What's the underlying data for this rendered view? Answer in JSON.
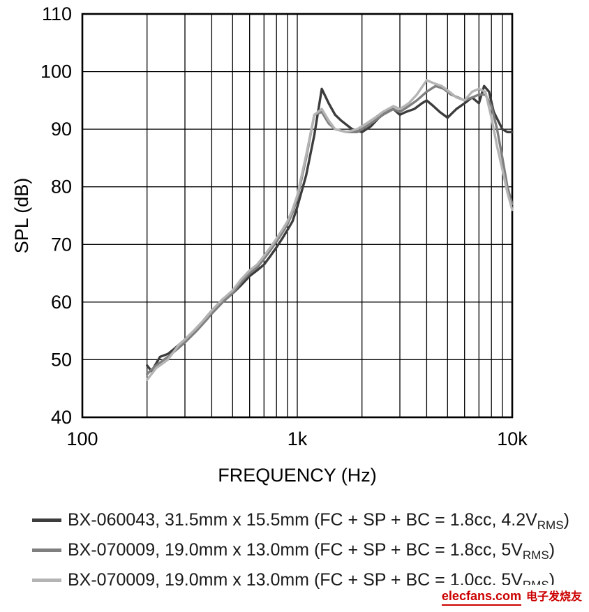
{
  "chart_data": {
    "type": "line",
    "title": "",
    "xlabel": "FREQUENCY (Hz)",
    "ylabel": "SPL (dB)",
    "x_scale": "log",
    "xlim": [
      100,
      10000
    ],
    "ylim": [
      40,
      110
    ],
    "x_ticks": [
      {
        "value": 100,
        "label": "100"
      },
      {
        "value": 1000,
        "label": "1k"
      },
      {
        "value": 10000,
        "label": "10k"
      }
    ],
    "y_ticks": [
      40,
      50,
      60,
      70,
      80,
      90,
      100,
      110
    ],
    "grid": "log minor verticals every decade step, horizontals every 10 dB, black",
    "legend_position": "below",
    "series": [
      {
        "name": "BX-060043, 31.5mm x 15.5mm (FC + SP + BC = 1.8cc, 4.2VRMS)",
        "color": "#3c3c3c",
        "points": [
          [
            200,
            49
          ],
          [
            210,
            48
          ],
          [
            230,
            50.5
          ],
          [
            250,
            51
          ],
          [
            270,
            52
          ],
          [
            300,
            53.5
          ],
          [
            330,
            55
          ],
          [
            360,
            56.5
          ],
          [
            400,
            58.5
          ],
          [
            450,
            60.5
          ],
          [
            500,
            61.5
          ],
          [
            550,
            63
          ],
          [
            600,
            64.5
          ],
          [
            650,
            65.5
          ],
          [
            700,
            66.5
          ],
          [
            750,
            68
          ],
          [
            800,
            69.5
          ],
          [
            850,
            71
          ],
          [
            900,
            72.5
          ],
          [
            950,
            74
          ],
          [
            1000,
            76.5
          ],
          [
            1100,
            82
          ],
          [
            1200,
            89
          ],
          [
            1300,
            97
          ],
          [
            1400,
            94.5
          ],
          [
            1500,
            92.5
          ],
          [
            1600,
            91.5
          ],
          [
            1800,
            90
          ],
          [
            2000,
            89.5
          ],
          [
            2200,
            90.5
          ],
          [
            2400,
            92
          ],
          [
            2600,
            93
          ],
          [
            2800,
            93.5
          ],
          [
            3000,
            92.5
          ],
          [
            3200,
            93
          ],
          [
            3500,
            93.5
          ],
          [
            3800,
            94.5
          ],
          [
            4000,
            95
          ],
          [
            4300,
            94
          ],
          [
            4600,
            93
          ],
          [
            5000,
            92
          ],
          [
            5500,
            93.5
          ],
          [
            6000,
            94.5
          ],
          [
            6500,
            95.5
          ],
          [
            7000,
            94.5
          ],
          [
            7400,
            97.5
          ],
          [
            7800,
            96.5
          ],
          [
            8200,
            93
          ],
          [
            9000,
            90
          ],
          [
            9500,
            89.5
          ],
          [
            10000,
            89.5
          ]
        ]
      },
      {
        "name": "BX-070009, 19.0mm x 13.0mm (FC + SP + BC = 1.8cc, 5VRMS)",
        "color": "#7f7f7f",
        "points": [
          [
            200,
            47.5
          ],
          [
            220,
            49
          ],
          [
            250,
            50.5
          ],
          [
            280,
            52
          ],
          [
            300,
            53
          ],
          [
            340,
            55
          ],
          [
            380,
            57
          ],
          [
            400,
            58
          ],
          [
            450,
            60
          ],
          [
            500,
            61.5
          ],
          [
            550,
            63.5
          ],
          [
            600,
            65
          ],
          [
            650,
            66
          ],
          [
            700,
            67.5
          ],
          [
            750,
            69
          ],
          [
            800,
            70.5
          ],
          [
            850,
            72
          ],
          [
            900,
            73.5
          ],
          [
            950,
            75.5
          ],
          [
            1000,
            78
          ],
          [
            1100,
            85
          ],
          [
            1200,
            92.5
          ],
          [
            1300,
            93
          ],
          [
            1400,
            91
          ],
          [
            1500,
            90
          ],
          [
            1700,
            89.5
          ],
          [
            1900,
            89.5
          ],
          [
            2100,
            90.5
          ],
          [
            2300,
            91.5
          ],
          [
            2500,
            92.5
          ],
          [
            2800,
            93.5
          ],
          [
            3000,
            93
          ],
          [
            3300,
            94
          ],
          [
            3600,
            95
          ],
          [
            4000,
            96.5
          ],
          [
            4400,
            97.5
          ],
          [
            4800,
            97
          ],
          [
            5200,
            96
          ],
          [
            5600,
            95.5
          ],
          [
            6000,
            95
          ],
          [
            6500,
            95.5
          ],
          [
            7000,
            96
          ],
          [
            7500,
            96
          ],
          [
            8000,
            94
          ],
          [
            8500,
            90
          ],
          [
            9000,
            85
          ],
          [
            9500,
            80
          ],
          [
            10000,
            77
          ]
        ]
      },
      {
        "name": "BX-070009, 19.0mm x 13.0mm (FC + SP + BC = 1.0cc, 5VRMS)",
        "color": "#b4b4b4",
        "points": [
          [
            200,
            46.5
          ],
          [
            220,
            48.5
          ],
          [
            250,
            50
          ],
          [
            280,
            52.5
          ],
          [
            300,
            53.5
          ],
          [
            340,
            55.5
          ],
          [
            380,
            57.5
          ],
          [
            400,
            58.5
          ],
          [
            450,
            60.5
          ],
          [
            500,
            62
          ],
          [
            550,
            64
          ],
          [
            600,
            65.5
          ],
          [
            650,
            66.5
          ],
          [
            700,
            68
          ],
          [
            750,
            69.5
          ],
          [
            800,
            71
          ],
          [
            850,
            72.5
          ],
          [
            900,
            74
          ],
          [
            950,
            76
          ],
          [
            1000,
            78.5
          ],
          [
            1100,
            85.5
          ],
          [
            1200,
            92.5
          ],
          [
            1300,
            93.5
          ],
          [
            1400,
            91.5
          ],
          [
            1500,
            90
          ],
          [
            1700,
            89.5
          ],
          [
            1900,
            90
          ],
          [
            2100,
            91
          ],
          [
            2300,
            92
          ],
          [
            2500,
            93
          ],
          [
            2800,
            94
          ],
          [
            3000,
            93.5
          ],
          [
            3300,
            94.5
          ],
          [
            3600,
            96
          ],
          [
            4000,
            98.5
          ],
          [
            4300,
            98
          ],
          [
            4700,
            97.5
          ],
          [
            5100,
            96.5
          ],
          [
            5500,
            95.5
          ],
          [
            6000,
            95
          ],
          [
            6500,
            96.5
          ],
          [
            7000,
            97
          ],
          [
            7500,
            96.5
          ],
          [
            8000,
            92
          ],
          [
            8500,
            87
          ],
          [
            9000,
            83
          ],
          [
            9500,
            79
          ],
          [
            10000,
            76
          ]
        ]
      }
    ]
  },
  "legend": {
    "items": [
      {
        "color": "#3c3c3c",
        "text_main": "BX-060043, 31.5mm x 15.5mm (FC + SP + BC = 1.8cc, 4.2V",
        "sub": "RMS",
        "text_end": ")"
      },
      {
        "color": "#7f7f7f",
        "text_main": "BX-070009, 19.0mm x 13.0mm (FC + SP + BC = 1.8cc, 5V",
        "sub": "RMS",
        "text_end": ")"
      },
      {
        "color": "#b4b4b4",
        "text_main": "BX-070009, 19.0mm x 13.0mm (FC + SP + BC = 1.0cc, 5V",
        "sub": "RMS",
        "text_end": ")"
      }
    ]
  },
  "watermark": {
    "site": "elecfans.com",
    "text": "电子发烧友",
    "color": "#cc0000"
  }
}
